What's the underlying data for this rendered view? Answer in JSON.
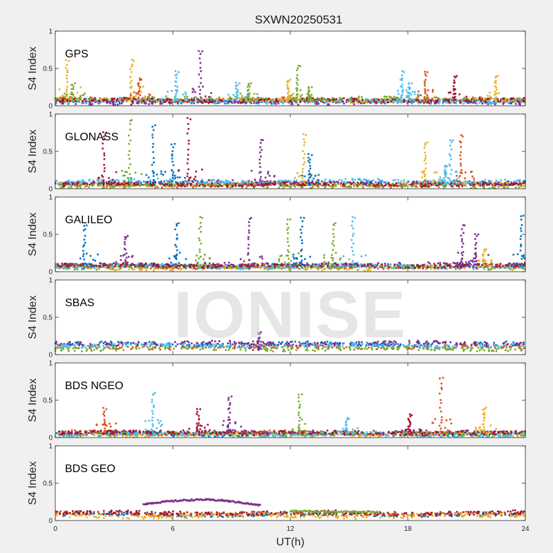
{
  "chart_data": {
    "type": "scatter",
    "title": "SXWN20250531",
    "xlabel": "UT(h)",
    "ylabel": "S4 Index",
    "xlim": [
      0,
      24
    ],
    "ylim": [
      0,
      1
    ],
    "x_ticks": [
      0,
      6,
      12,
      18,
      24
    ],
    "y_ticks": [
      0,
      0.5,
      1
    ],
    "watermark": "IONISE",
    "palette": [
      "#0072BD",
      "#D95319",
      "#EDB120",
      "#7E2F8E",
      "#77AC30",
      "#4DBEEE",
      "#A2142F"
    ],
    "panels": [
      {
        "label": "GPS",
        "baselines": [
          {
            "series": 0,
            "level": 0.06
          },
          {
            "series": 1,
            "level": 0.08
          },
          {
            "series": 2,
            "level": 0.07
          },
          {
            "series": 3,
            "level": 0.05
          },
          {
            "series": 4,
            "level": 0.09
          },
          {
            "series": 5,
            "level": 0.06
          },
          {
            "series": 6,
            "level": 0.07
          }
        ],
        "peaks": [
          {
            "x": 0.7,
            "y": 0.6,
            "series": 2
          },
          {
            "x": 1.0,
            "y": 0.3,
            "series": 4
          },
          {
            "x": 4.0,
            "y": 0.6,
            "series": 2
          },
          {
            "x": 4.4,
            "y": 0.35,
            "series": 1
          },
          {
            "x": 6.3,
            "y": 0.45,
            "series": 5
          },
          {
            "x": 7.5,
            "y": 0.73,
            "series": 3
          },
          {
            "x": 9.4,
            "y": 0.3,
            "series": 5
          },
          {
            "x": 10.0,
            "y": 0.3,
            "series": 4
          },
          {
            "x": 12.0,
            "y": 0.35,
            "series": 2
          },
          {
            "x": 12.5,
            "y": 0.53,
            "series": 4
          },
          {
            "x": 13.1,
            "y": 0.25,
            "series": 4
          },
          {
            "x": 17.8,
            "y": 0.45,
            "series": 5
          },
          {
            "x": 18.2,
            "y": 0.3,
            "series": 5
          },
          {
            "x": 19.0,
            "y": 0.45,
            "series": 1
          },
          {
            "x": 20.5,
            "y": 0.4,
            "series": 6
          },
          {
            "x": 22.6,
            "y": 0.4,
            "series": 2
          }
        ]
      },
      {
        "label": "GLONASS",
        "baselines": [
          {
            "series": 0,
            "level": 0.07
          },
          {
            "series": 1,
            "level": 0.05
          },
          {
            "series": 2,
            "level": 0.06
          },
          {
            "series": 3,
            "level": 0.08
          },
          {
            "series": 4,
            "level": 0.04
          },
          {
            "series": 5,
            "level": 0.1
          },
          {
            "series": 6,
            "level": 0.06
          }
        ],
        "peaks": [
          {
            "x": 2.6,
            "y": 0.75,
            "series": 6
          },
          {
            "x": 3.9,
            "y": 0.92,
            "series": 4
          },
          {
            "x": 5.1,
            "y": 0.85,
            "series": 0
          },
          {
            "x": 6.1,
            "y": 0.6,
            "series": 0
          },
          {
            "x": 6.9,
            "y": 0.93,
            "series": 6
          },
          {
            "x": 10.6,
            "y": 0.65,
            "series": 3
          },
          {
            "x": 12.8,
            "y": 0.72,
            "series": 2
          },
          {
            "x": 13.1,
            "y": 0.45,
            "series": 0
          },
          {
            "x": 19.0,
            "y": 0.62,
            "series": 2
          },
          {
            "x": 20.3,
            "y": 0.65,
            "series": 5
          },
          {
            "x": 20.8,
            "y": 0.7,
            "series": 1
          },
          {
            "x": 20.0,
            "y": 0.3,
            "series": 5
          }
        ]
      },
      {
        "label": "GALILEO",
        "baselines": [
          {
            "series": 0,
            "level": 0.08
          },
          {
            "series": 1,
            "level": 0.07
          },
          {
            "series": 2,
            "level": 0.05
          },
          {
            "series": 3,
            "level": 0.09
          },
          {
            "series": 4,
            "level": 0.06
          },
          {
            "series": 5,
            "level": 0.07
          },
          {
            "series": 6,
            "level": 0.08
          }
        ],
        "peaks": [
          {
            "x": 1.6,
            "y": 0.62,
            "series": 0
          },
          {
            "x": 3.7,
            "y": 0.48,
            "series": 3
          },
          {
            "x": 6.3,
            "y": 0.65,
            "series": 0
          },
          {
            "x": 7.5,
            "y": 0.72,
            "series": 4
          },
          {
            "x": 10.0,
            "y": 0.72,
            "series": 3
          },
          {
            "x": 12.0,
            "y": 0.7,
            "series": 4
          },
          {
            "x": 12.7,
            "y": 0.72,
            "series": 0
          },
          {
            "x": 14.3,
            "y": 0.65,
            "series": 4
          },
          {
            "x": 15.3,
            "y": 0.72,
            "series": 5
          },
          {
            "x": 20.9,
            "y": 0.62,
            "series": 3
          },
          {
            "x": 21.6,
            "y": 0.5,
            "series": 3
          },
          {
            "x": 22.0,
            "y": 0.3,
            "series": 2
          },
          {
            "x": 23.9,
            "y": 0.75,
            "series": 0
          }
        ]
      },
      {
        "label": "SBAS",
        "baselines": [
          {
            "series": 0,
            "level": 0.14
          },
          {
            "series": 1,
            "level": 0.1
          },
          {
            "series": 3,
            "level": 0.15
          },
          {
            "series": 4,
            "level": 0.08
          },
          {
            "series": 5,
            "level": 0.12
          }
        ],
        "peaks": [
          {
            "x": 10.5,
            "y": 0.3,
            "series": 3
          }
        ]
      },
      {
        "label": "BDS NGEO",
        "baselines": [
          {
            "series": 0,
            "level": 0.05
          },
          {
            "series": 1,
            "level": 0.06
          },
          {
            "series": 2,
            "level": 0.04
          },
          {
            "series": 3,
            "level": 0.07
          },
          {
            "series": 4,
            "level": 0.05
          },
          {
            "series": 5,
            "level": 0.04
          },
          {
            "series": 6,
            "level": 0.06
          }
        ],
        "peaks": [
          {
            "x": 2.6,
            "y": 0.38,
            "series": 1
          },
          {
            "x": 5.1,
            "y": 0.6,
            "series": 5
          },
          {
            "x": 7.4,
            "y": 0.38,
            "series": 6
          },
          {
            "x": 9.0,
            "y": 0.55,
            "series": 3
          },
          {
            "x": 12.6,
            "y": 0.58,
            "series": 4
          },
          {
            "x": 15.0,
            "y": 0.25,
            "series": 5
          },
          {
            "x": 18.2,
            "y": 0.3,
            "series": 6
          },
          {
            "x": 19.8,
            "y": 0.8,
            "series": 1
          },
          {
            "x": 22.0,
            "y": 0.4,
            "series": 2
          }
        ]
      },
      {
        "label": "BDS GEO",
        "baselines": [
          {
            "series": 0,
            "level": 0.08
          },
          {
            "series": 1,
            "level": 0.09
          },
          {
            "series": 2,
            "level": 0.06
          },
          {
            "series": 6,
            "level": 0.1
          }
        ],
        "peaks": [],
        "arcs": [
          {
            "series": 3,
            "x": [
              4.5,
              5.5,
              6.5,
              7.5,
              8.5,
              9.5,
              10.5
            ],
            "y": [
              0.22,
              0.25,
              0.27,
              0.28,
              0.27,
              0.24,
              0.2
            ]
          },
          {
            "series": 4,
            "x": [
              12.0,
              13.5,
              15.0,
              16.5
            ],
            "y": [
              0.13,
              0.12,
              0.12,
              0.11
            ]
          }
        ]
      }
    ]
  }
}
